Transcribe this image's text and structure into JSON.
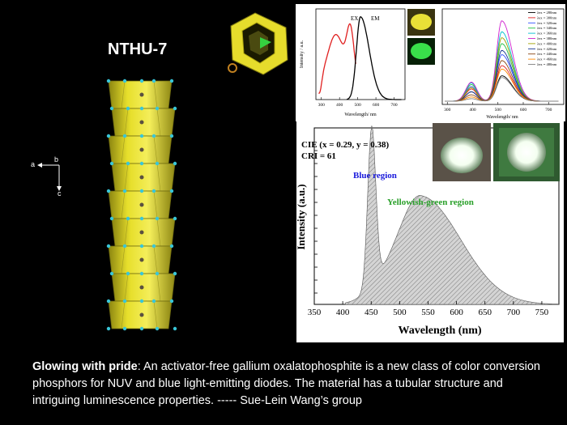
{
  "title": "NTHU-7",
  "axes_labels": {
    "a": "a",
    "b": "b",
    "c": "c"
  },
  "panel_excitation": {
    "ylabel": "Intensity / a.u.",
    "xlabel": "Wavelength/ nm",
    "ticks_x": [
      "300",
      "400",
      "500",
      "600",
      "700"
    ],
    "label_ex": "EX",
    "label_em": "EM",
    "colors": {
      "ex": "#e02020",
      "em": "#000000",
      "yellow_powder": "#f2ea3a",
      "green_glow": "#39e04a"
    }
  },
  "panel_series": {
    "xlabel": "Wavelength/ nm",
    "ticks_x": [
      "300",
      "400",
      "500",
      "600",
      "700"
    ],
    "legend": [
      "λex = 280nm",
      "λex = 300nm",
      "λex = 320nm",
      "λex = 340nm",
      "λex = 360nm",
      "λex = 380nm",
      "λex = 400nm",
      "λex = 420nm",
      "λex = 440nm",
      "λex = 460nm",
      "λex = 480nm"
    ],
    "colors": [
      "#000000",
      "#e02020",
      "#3050ff",
      "#20c040",
      "#00c0d0",
      "#d020d0",
      "#a0a000",
      "#103090",
      "#8b4513",
      "#ff8800",
      "#808080"
    ]
  },
  "panel_main": {
    "cie": "CIE (x = 0.29, y = 0.38)",
    "cri": "CRI = 61",
    "blue_region": "Blue region",
    "yg_region": "Yellowish-green region",
    "ylabel": "Intensity (a.u.)",
    "xlabel": "Wavelength (nm)",
    "ticks_x": [
      "350",
      "400",
      "450",
      "500",
      "550",
      "600",
      "650",
      "700",
      "750"
    ],
    "colors": {
      "blue_label": "#1a1adc",
      "yg_label": "#2aa02a",
      "fill": "#c8c8c8"
    }
  },
  "caption": {
    "bold": "Glowing with pride",
    "text": ": An activator-free gallium oxalatophosphite is a new class of color conversion phosphors for NUV and blue light-emitting diodes. The material has a tubular structure and intriguing luminescence properties. -----   Sue-Lein Wang’s group"
  }
}
